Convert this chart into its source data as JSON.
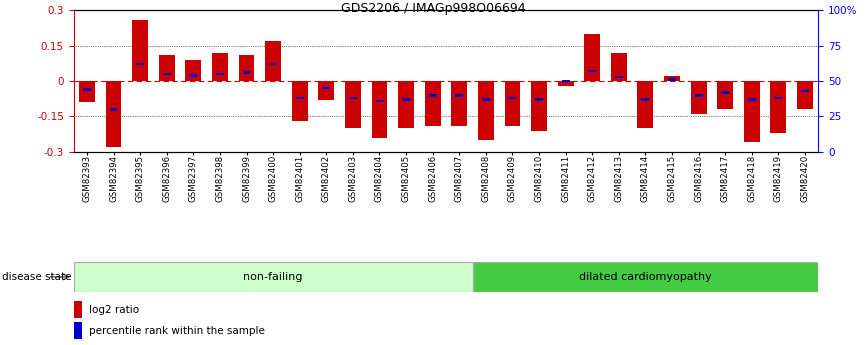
{
  "title": "GDS2206 / IMAGp998O06694",
  "samples": [
    "GSM82393",
    "GSM82394",
    "GSM82395",
    "GSM82396",
    "GSM82397",
    "GSM82398",
    "GSM82399",
    "GSM82400",
    "GSM82401",
    "GSM82402",
    "GSM82403",
    "GSM82404",
    "GSM82405",
    "GSM82406",
    "GSM82407",
    "GSM82408",
    "GSM82409",
    "GSM82410",
    "GSM82411",
    "GSM82412",
    "GSM82413",
    "GSM82414",
    "GSM82415",
    "GSM82416",
    "GSM82417",
    "GSM82418",
    "GSM82419",
    "GSM82420"
  ],
  "log2_ratio": [
    -0.09,
    -0.28,
    0.26,
    0.11,
    0.09,
    0.12,
    0.11,
    0.17,
    -0.17,
    -0.08,
    -0.2,
    -0.24,
    -0.2,
    -0.19,
    -0.19,
    -0.25,
    -0.19,
    -0.21,
    -0.02,
    0.2,
    0.12,
    -0.2,
    0.02,
    -0.14,
    -0.12,
    -0.26,
    -0.22,
    -0.12
  ],
  "percentile_rank": [
    44,
    30,
    62,
    55,
    54,
    55,
    56,
    62,
    38,
    45,
    38,
    36,
    37,
    40,
    40,
    37,
    38,
    37,
    50,
    57,
    53,
    37,
    51,
    40,
    42,
    37,
    38,
    43
  ],
  "non_failing_count": 15,
  "dilated_count": 13,
  "ylim": [
    -0.3,
    0.3
  ],
  "yticks_left": [
    -0.3,
    -0.15,
    0.0,
    0.15,
    0.3
  ],
  "yticks_right_pct": [
    0,
    25,
    50,
    75,
    100
  ],
  "bar_color": "#cc0000",
  "dot_color": "#0000cc",
  "zero_line_color": "#cc0000",
  "non_failing_color": "#ccffcc",
  "dilated_color": "#44cc44",
  "bg_color": "#ffffff"
}
